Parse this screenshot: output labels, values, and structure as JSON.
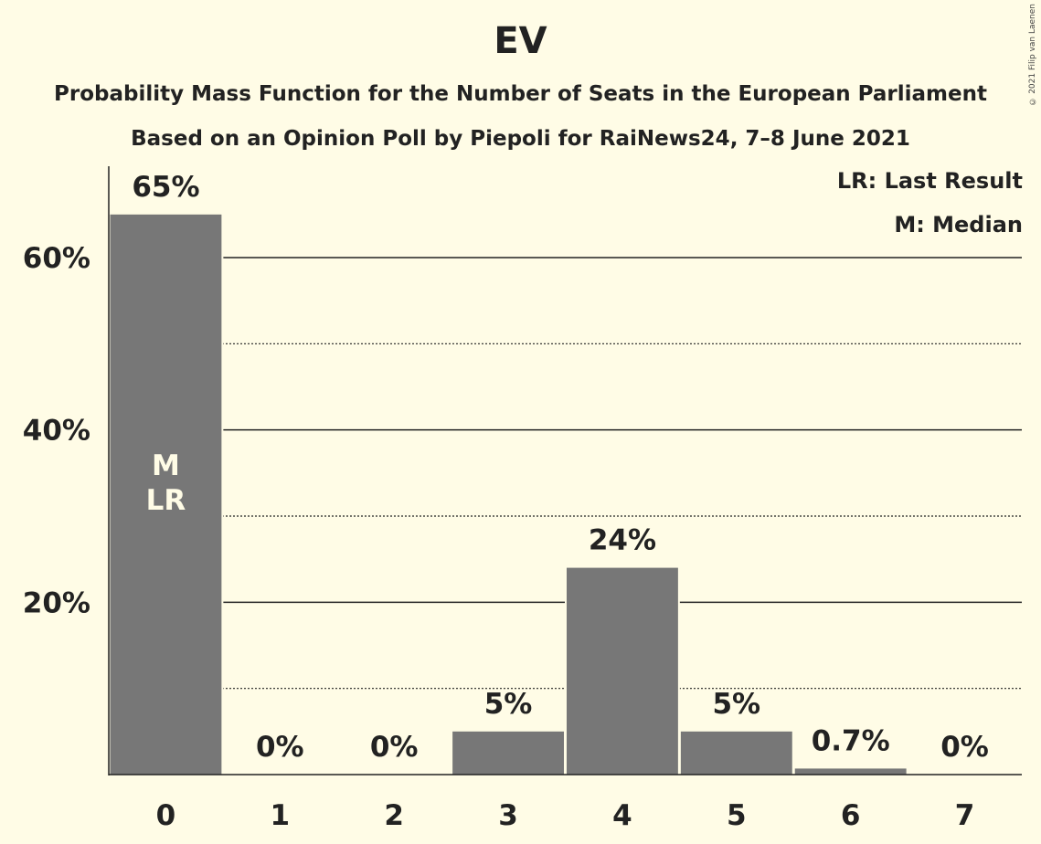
{
  "title": "EV",
  "subtitle_line1": "Probability Mass Function for the Number of Seats in the European Parliament",
  "subtitle_line2": "Based on an Opinion Poll by Piepoli for RaiNews24, 7–8 June 2021",
  "copyright": "© 2021 Filip van Laenen",
  "legend": {
    "last_result": "LR: Last Result",
    "median": "M: Median"
  },
  "colors": {
    "background": "#FFFCE6",
    "bar": "#777777",
    "text": "#222222",
    "bar_label": "#FFFCE6"
  },
  "chart_data": {
    "type": "bar",
    "categories": [
      "0",
      "1",
      "2",
      "3",
      "4",
      "5",
      "6",
      "7"
    ],
    "values": [
      65,
      0,
      0,
      5,
      24,
      5,
      0.7,
      0
    ],
    "data_labels": [
      "65%",
      "0%",
      "0%",
      "5%",
      "24%",
      "5%",
      "0.7%",
      "0%"
    ],
    "ylim": [
      0,
      70
    ],
    "yticks": [
      20,
      40,
      60
    ],
    "ytick_labels": [
      "20%",
      "40%",
      "60%"
    ],
    "minor_gridlines": [
      10,
      30,
      50
    ],
    "grid": true,
    "bar_annotations": [
      {
        "category": "0",
        "lines": [
          "M",
          "LR"
        ]
      }
    ]
  }
}
